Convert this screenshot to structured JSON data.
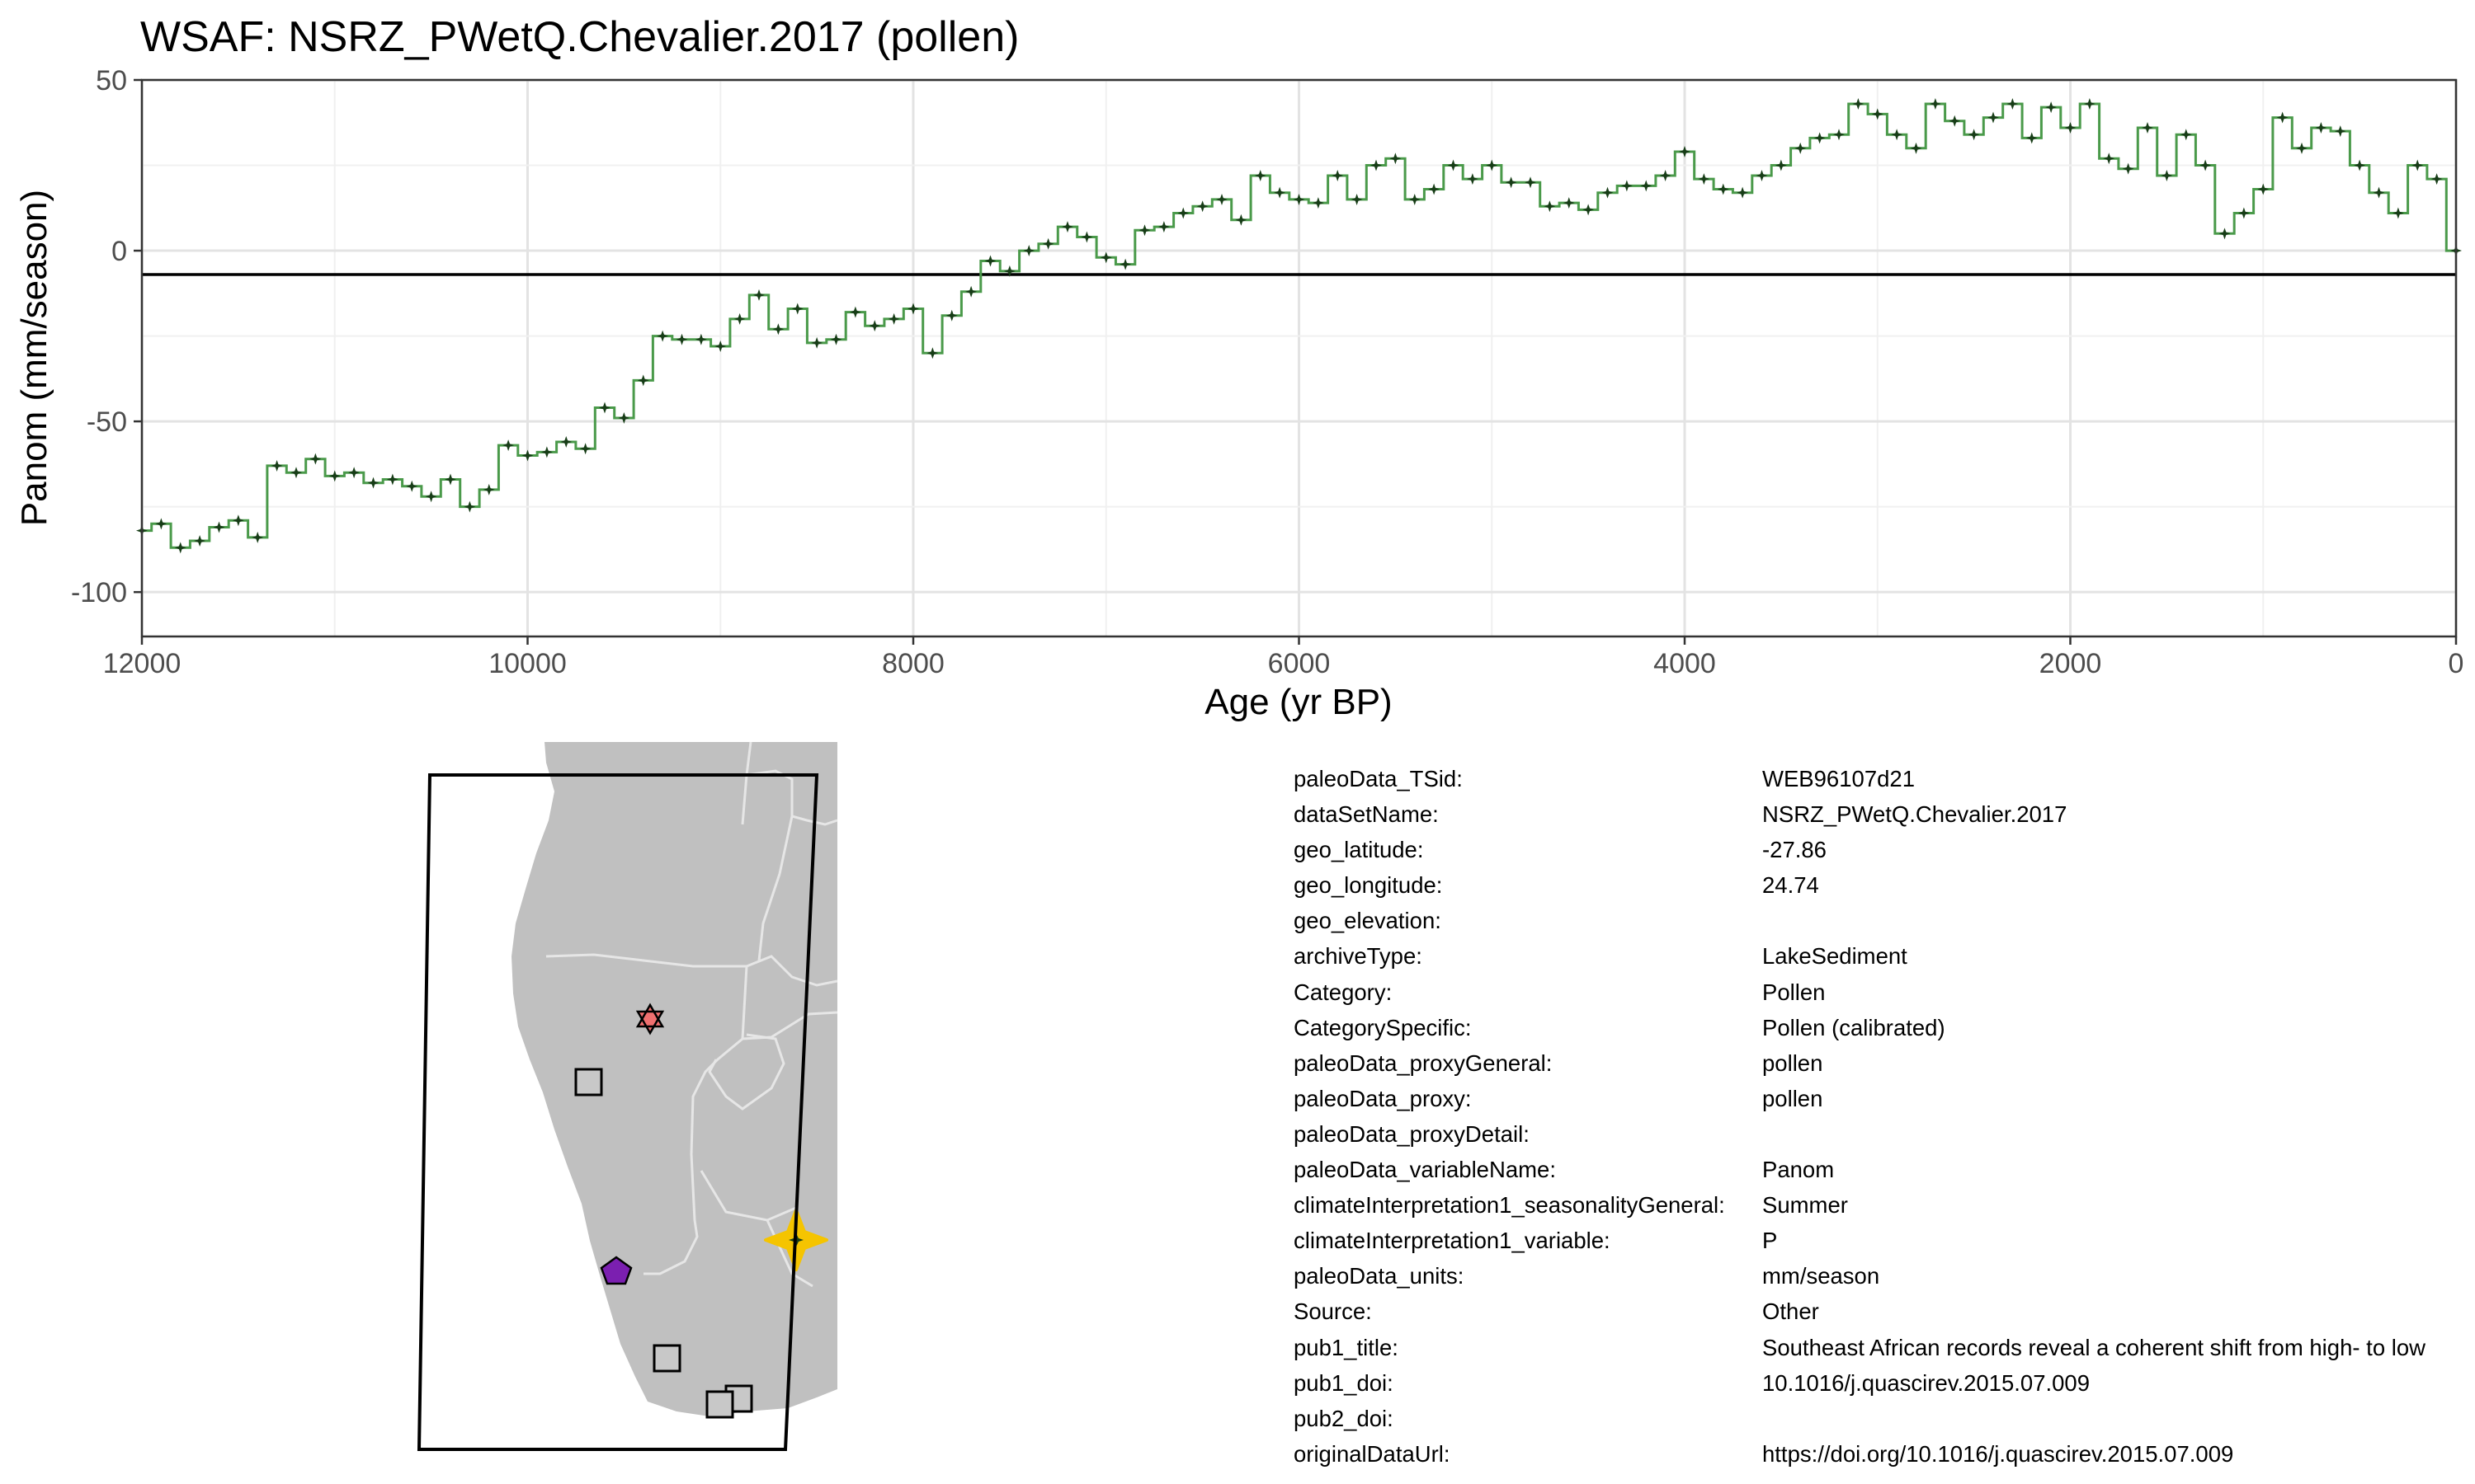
{
  "chart_data": {
    "type": "line",
    "title": "WSAF: NSRZ_PWetQ.Chevalier.2017 (pollen)",
    "xlabel": "Age (yr BP)",
    "ylabel": "Panom (mm/season)",
    "xlim": [
      12000,
      0
    ],
    "ylim": [
      -113,
      50
    ],
    "x_reversed": true,
    "x_ticks": [
      "12000",
      "10000",
      "8000",
      "6000",
      "4000",
      "2000",
      "0"
    ],
    "y_ticks": [
      "50",
      "0",
      "-50",
      "-100"
    ],
    "reference_line": -7,
    "grid": true,
    "line_color": "#4a9a4a",
    "marker_color": "#173d17",
    "series": [
      {
        "x": [
          12000,
          11900,
          11800,
          11700,
          11600,
          11500,
          11400,
          11300,
          11200,
          11100,
          11000,
          10900,
          10800,
          10700,
          10600,
          10500,
          10400,
          10300,
          10200,
          10100,
          10000,
          9900,
          9800,
          9700,
          9600,
          9500,
          9400,
          9300,
          9200,
          9100,
          9000,
          8900,
          8800,
          8700,
          8600,
          8500,
          8400,
          8300,
          8200,
          8100,
          8000,
          7900,
          7800,
          7700,
          7600,
          7500,
          7400,
          7300,
          7200,
          7100,
          7000,
          6900,
          6800,
          6700,
          6600,
          6500,
          6400,
          6300,
          6200,
          6100,
          6000,
          5900,
          5800,
          5700,
          5600,
          5500,
          5400,
          5300,
          5200,
          5100,
          5000,
          4900,
          4800,
          4700,
          4600,
          4500,
          4400,
          4300,
          4200,
          4100,
          4000,
          3900,
          3800,
          3700,
          3600,
          3500,
          3400,
          3300,
          3200,
          3100,
          3000,
          2900,
          2800,
          2700,
          2600,
          2500,
          2400,
          2300,
          2200,
          2100,
          2000,
          1900,
          1800,
          1700,
          1600,
          1500,
          1400,
          1300,
          1200,
          1100,
          1000,
          900,
          800,
          700,
          600,
          500,
          400,
          300,
          200,
          100,
          0
        ],
        "y": [
          -82,
          -80,
          -87,
          -85,
          -81,
          -79,
          -84,
          -63,
          -65,
          -61,
          -66,
          -65,
          -68,
          -67,
          -69,
          -72,
          -67,
          -75,
          -70,
          -57,
          -60,
          -59,
          -56,
          -58,
          -46,
          -49,
          -38,
          -25,
          -26,
          -26,
          -28,
          -20,
          -13,
          -23,
          -17,
          -27,
          -26,
          -18,
          -22,
          -20,
          -17,
          -30,
          -19,
          -12,
          -3,
          -6,
          0,
          2,
          7,
          4,
          -2,
          -4,
          6,
          7,
          11,
          13,
          15,
          9,
          22,
          17,
          15,
          14,
          22,
          15,
          25,
          27,
          15,
          18,
          25,
          21,
          25,
          20,
          20,
          13,
          14,
          12,
          17,
          19,
          19,
          22,
          29,
          21,
          18,
          17,
          22,
          25,
          30,
          33,
          34,
          43,
          40,
          34,
          30,
          43,
          38,
          34,
          39,
          43,
          33,
          42,
          36,
          43,
          27,
          24,
          36,
          22,
          34,
          25,
          5,
          11,
          18,
          39,
          30,
          36,
          35,
          25,
          17,
          11,
          25,
          21,
          0
        ]
      }
    ]
  },
  "map": {
    "land_color": "#c0c0c0",
    "border_color": "#e6e6e6",
    "markers": [
      {
        "shape": "hexagram",
        "fill": "#f07070"
      },
      {
        "shape": "square",
        "fill": "#c8c8c8"
      },
      {
        "shape": "pentagon",
        "fill": "#7b1fb0"
      },
      {
        "shape": "square",
        "fill": "#c8c8c8"
      },
      {
        "shape": "square",
        "fill": "#c8c8c8"
      },
      {
        "shape": "square",
        "fill": "#c8c8c8"
      },
      {
        "shape": "four-point-star",
        "fill": "#f5c400",
        "highlight": true
      }
    ]
  },
  "metadata": [
    {
      "key": "paleoData_TSid:",
      "value": "WEB96107d21"
    },
    {
      "key": "dataSetName:",
      "value": "NSRZ_PWetQ.Chevalier.2017"
    },
    {
      "key": "geo_latitude:",
      "value": "-27.86"
    },
    {
      "key": "geo_longitude:",
      "value": "24.74"
    },
    {
      "key": "geo_elevation:",
      "value": ""
    },
    {
      "key": "archiveType:",
      "value": "LakeSediment"
    },
    {
      "key": "Category:",
      "value": "Pollen"
    },
    {
      "key": "CategorySpecific:",
      "value": "Pollen (calibrated)"
    },
    {
      "key": "paleoData_proxyGeneral:",
      "value": "pollen"
    },
    {
      "key": "paleoData_proxy:",
      "value": "pollen"
    },
    {
      "key": "paleoData_proxyDetail:",
      "value": ""
    },
    {
      "key": "paleoData_variableName:",
      "value": "Panom"
    },
    {
      "key": "climateInterpretation1_seasonalityGeneral:",
      "value": "Summer"
    },
    {
      "key": "climateInterpretation1_variable:",
      "value": "P"
    },
    {
      "key": "paleoData_units:",
      "value": "mm/season"
    },
    {
      "key": "Source:",
      "value": "Other"
    },
    {
      "key": "pub1_title:",
      "value": "Southeast African records reveal a coherent shift from high- to low"
    },
    {
      "key": "pub1_doi:",
      "value": "10.1016/j.quascirev.2015.07.009"
    },
    {
      "key": "pub2_doi:",
      "value": ""
    },
    {
      "key": "originalDataUrl:",
      "value": "https://doi.org/10.1016/j.quascirev.2015.07.009"
    }
  ]
}
